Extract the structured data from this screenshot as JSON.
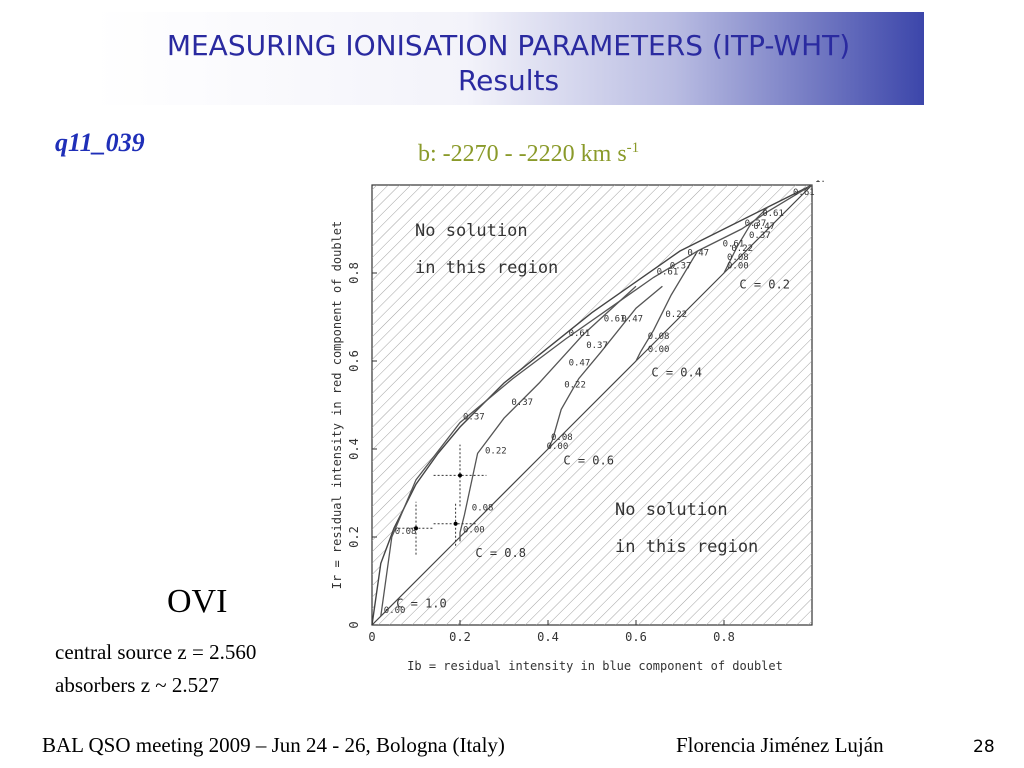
{
  "header": {
    "title_line1": "MEASURING IONISATION PARAMETERS (ITP-WHT)",
    "title_line2": "Results"
  },
  "labels": {
    "object_id": "q11_039",
    "velocity_range_text": "b: -2270 - -2220 km s",
    "velocity_unit_exp": "-1",
    "ion": "OVI",
    "central_source": "central source z = 2.560",
    "absorbers": "absorbers z ~ 2.527"
  },
  "footer": {
    "meeting": "BAL QSO meeting 2009 – Jun 24 - 26, Bologna (Italy)",
    "author": "Florencia Jiménez Luján",
    "page_number": "28"
  },
  "chart_data": {
    "type": "line",
    "xlabel": "Ib = residual intensity in blue component of doublet",
    "ylabel": "Ir = residual intensity in red component of doublet",
    "xlim": [
      0,
      1
    ],
    "ylim": [
      0,
      1
    ],
    "x_ticks": [
      "0",
      "0.2",
      "0.4",
      "0.6",
      "0.8"
    ],
    "y_ticks": [
      "0",
      "0.2",
      "0.4",
      "0.6",
      "0.8"
    ],
    "region_text_top": [
      "No solution",
      "in this region"
    ],
    "region_text_bottom": [
      "No solution",
      "in this region"
    ],
    "boundary_upper": {
      "x": [
        0.0,
        0.02,
        0.05,
        0.1,
        0.15,
        0.2,
        0.3,
        0.4,
        0.5,
        0.6,
        0.7,
        0.8,
        0.9,
        1.0
      ],
      "y": [
        0.0,
        0.14,
        0.22,
        0.32,
        0.39,
        0.45,
        0.55,
        0.63,
        0.71,
        0.78,
        0.85,
        0.9,
        0.95,
        1.0
      ]
    },
    "boundary_lower": {
      "x": [
        0.0,
        0.2,
        0.4,
        0.6,
        0.8,
        1.0
      ],
      "y": [
        0.0,
        0.2,
        0.4,
        0.6,
        0.8,
        1.0
      ]
    },
    "series": [
      {
        "name": "C = 1.0",
        "x": [
          0.02,
          0.045,
          0.1,
          0.2,
          0.32,
          0.44,
          0.54,
          0.64,
          0.74,
          0.84,
          0.9,
          0.95,
          1.0
        ],
        "y": [
          0.02,
          0.2,
          0.33,
          0.46,
          0.56,
          0.65,
          0.72,
          0.79,
          0.85,
          0.9,
          0.94,
          0.97,
          1.0
        ],
        "point_labels": [
          "0.00",
          "0.08",
          "0.22",
          "0.37",
          "0.47",
          "0.61",
          "0.61",
          "0.61",
          "0.61",
          "0.37",
          "0.47",
          "0.61",
          "1.00"
        ]
      },
      {
        "name": "C = 0.8",
        "x": [
          0.2,
          0.2,
          0.21,
          0.24,
          0.3,
          0.38,
          0.48,
          0.6
        ],
        "y": [
          0.19,
          0.21,
          0.25,
          0.39,
          0.47,
          0.55,
          0.66,
          0.77
        ]
      },
      {
        "name": "C = 0.6",
        "x": [
          0.4,
          0.41,
          0.43,
          0.47,
          0.52,
          0.6,
          0.66
        ],
        "y": [
          0.4,
          0.42,
          0.49,
          0.56,
          0.62,
          0.72,
          0.77
        ]
      },
      {
        "name": "C = 0.4",
        "x": [
          0.6,
          0.61,
          0.64,
          0.68,
          0.74
        ],
        "y": [
          0.6,
          0.62,
          0.67,
          0.75,
          0.85
        ]
      },
      {
        "name": "C = 0.2",
        "x": [
          0.8,
          0.81,
          0.83,
          0.86,
          0.9
        ],
        "y": [
          0.8,
          0.82,
          0.86,
          0.91,
          0.95
        ]
      }
    ],
    "curve_labels": [
      "C = 1.0",
      "C = 0.8",
      "C = 0.6",
      "C = 0.4",
      "C = 0.2"
    ],
    "point_labels_minor": [
      {
        "x": 0.25,
        "y": 0.39,
        "text": "0.22"
      },
      {
        "x": 0.22,
        "y": 0.26,
        "text": "0.08"
      },
      {
        "x": 0.2,
        "y": 0.21,
        "text": "0.00"
      },
      {
        "x": 0.31,
        "y": 0.5,
        "text": "0.37"
      },
      {
        "x": 0.43,
        "y": 0.54,
        "text": "0.22"
      },
      {
        "x": 0.4,
        "y": 0.42,
        "text": "0.08"
      },
      {
        "x": 0.39,
        "y": 0.4,
        "text": "0.00"
      },
      {
        "x": 0.44,
        "y": 0.59,
        "text": "0.47"
      },
      {
        "x": 0.48,
        "y": 0.63,
        "text": "0.37"
      },
      {
        "x": 0.52,
        "y": 0.69,
        "text": "0.61"
      },
      {
        "x": 0.56,
        "y": 0.69,
        "text": "0.47"
      },
      {
        "x": 0.62,
        "y": 0.65,
        "text": "0.08"
      },
      {
        "x": 0.62,
        "y": 0.62,
        "text": "0.00"
      },
      {
        "x": 0.66,
        "y": 0.7,
        "text": "0.22"
      },
      {
        "x": 0.67,
        "y": 0.81,
        "text": "0.37"
      },
      {
        "x": 0.71,
        "y": 0.84,
        "text": "0.47"
      },
      {
        "x": 0.79,
        "y": 0.86,
        "text": "0.61"
      },
      {
        "x": 0.81,
        "y": 0.85,
        "text": "0.22"
      },
      {
        "x": 0.8,
        "y": 0.83,
        "text": "0.08"
      },
      {
        "x": 0.8,
        "y": 0.81,
        "text": "0.00"
      },
      {
        "x": 0.85,
        "y": 0.88,
        "text": "0.37"
      },
      {
        "x": 0.86,
        "y": 0.9,
        "text": "0.47"
      },
      {
        "x": 0.88,
        "y": 0.93,
        "text": "0.61"
      }
    ],
    "measurements": [
      {
        "x": 0.1,
        "y": 0.22,
        "xerr": [
          0.04,
          0.04
        ],
        "yerr": [
          0.06,
          0.06
        ]
      },
      {
        "x": 0.19,
        "y": 0.23,
        "xerr": [
          0.05,
          0.05
        ],
        "yerr": [
          0.05,
          0.05
        ]
      },
      {
        "x": 0.2,
        "y": 0.34,
        "xerr": [
          0.06,
          0.06
        ],
        "yerr": [
          0.07,
          0.07
        ]
      }
    ]
  }
}
